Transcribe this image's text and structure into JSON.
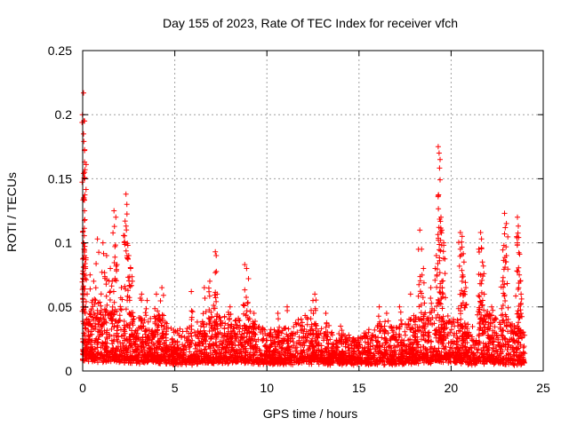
{
  "chart_data": {
    "type": "scatter",
    "title": "Day 155 of 2023, Rate Of TEC Index for receiver vfch",
    "xlabel": "GPS time / hours",
    "ylabel": "ROTI / TECUs",
    "xlim": [
      0,
      25
    ],
    "ylim": [
      0,
      0.25
    ],
    "grid": true,
    "marker": "+",
    "colors": {
      "points": "#ff0000",
      "grid": "#a0a0a0",
      "axes": "#000000"
    },
    "xticks": [
      0,
      5,
      10,
      15,
      20,
      25
    ],
    "xtick_labels": [
      "0",
      "5",
      "10",
      "15",
      "20",
      "25"
    ],
    "yticks": [
      0,
      0.05,
      0.1,
      0.15,
      0.2,
      0.25
    ],
    "ytick_labels": [
      "0",
      "0.05",
      "0.1",
      "0.15",
      "0.2",
      "0.25"
    ],
    "series": [
      {
        "name": "ROTI",
        "description": "dense cloud of points, mostly 0.005-0.04 TECU/s across 0-24 h",
        "envelope": [
          {
            "x": 0.0,
            "base": 0.012,
            "top": 0.05
          },
          {
            "x": 1.0,
            "base": 0.012,
            "top": 0.05
          },
          {
            "x": 2.0,
            "base": 0.01,
            "top": 0.045
          },
          {
            "x": 3.0,
            "base": 0.01,
            "top": 0.04
          },
          {
            "x": 4.0,
            "base": 0.01,
            "top": 0.045
          },
          {
            "x": 5.0,
            "base": 0.008,
            "top": 0.03
          },
          {
            "x": 6.0,
            "base": 0.008,
            "top": 0.032
          },
          {
            "x": 7.0,
            "base": 0.01,
            "top": 0.045
          },
          {
            "x": 8.0,
            "base": 0.01,
            "top": 0.04
          },
          {
            "x": 9.0,
            "base": 0.01,
            "top": 0.04
          },
          {
            "x": 10.0,
            "base": 0.008,
            "top": 0.03
          },
          {
            "x": 11.0,
            "base": 0.008,
            "top": 0.032
          },
          {
            "x": 12.0,
            "base": 0.01,
            "top": 0.04
          },
          {
            "x": 13.0,
            "base": 0.008,
            "top": 0.035
          },
          {
            "x": 14.0,
            "base": 0.008,
            "top": 0.028
          },
          {
            "x": 15.0,
            "base": 0.008,
            "top": 0.025
          },
          {
            "x": 16.0,
            "base": 0.008,
            "top": 0.035
          },
          {
            "x": 17.0,
            "base": 0.008,
            "top": 0.035
          },
          {
            "x": 18.0,
            "base": 0.01,
            "top": 0.04
          },
          {
            "x": 19.0,
            "base": 0.01,
            "top": 0.045
          },
          {
            "x": 20.0,
            "base": 0.01,
            "top": 0.04
          },
          {
            "x": 21.0,
            "base": 0.008,
            "top": 0.035
          },
          {
            "x": 22.0,
            "base": 0.01,
            "top": 0.045
          },
          {
            "x": 23.0,
            "base": 0.008,
            "top": 0.04
          },
          {
            "x": 24.0,
            "base": 0.008,
            "top": 0.03
          }
        ],
        "peaks": [
          {
            "x": 0.05,
            "y": 0.217
          },
          {
            "x": 0.1,
            "y": 0.195
          },
          {
            "x": 0.05,
            "y": 0.185
          },
          {
            "x": 0.1,
            "y": 0.172
          },
          {
            "x": 0.1,
            "y": 0.163
          },
          {
            "x": 0.1,
            "y": 0.15
          },
          {
            "x": 0.05,
            "y": 0.135
          },
          {
            "x": 0.1,
            "y": 0.125
          },
          {
            "x": 0.05,
            "y": 0.1
          },
          {
            "x": 0.1,
            "y": 0.09
          },
          {
            "x": 0.15,
            "y": 0.08
          },
          {
            "x": 0.4,
            "y": 0.075
          },
          {
            "x": 0.6,
            "y": 0.07
          },
          {
            "x": 0.8,
            "y": 0.103
          },
          {
            "x": 1.1,
            "y": 0.1
          },
          {
            "x": 1.3,
            "y": 0.09
          },
          {
            "x": 1.5,
            "y": 0.08
          },
          {
            "x": 1.6,
            "y": 0.07
          },
          {
            "x": 1.7,
            "y": 0.125
          },
          {
            "x": 1.8,
            "y": 0.12
          },
          {
            "x": 1.75,
            "y": 0.097
          },
          {
            "x": 2.1,
            "y": 0.065
          },
          {
            "x": 2.35,
            "y": 0.138
          },
          {
            "x": 2.4,
            "y": 0.13
          },
          {
            "x": 2.3,
            "y": 0.117
          },
          {
            "x": 2.45,
            "y": 0.098
          },
          {
            "x": 2.5,
            "y": 0.09
          },
          {
            "x": 2.6,
            "y": 0.08
          },
          {
            "x": 2.7,
            "y": 0.07
          },
          {
            "x": 3.2,
            "y": 0.06
          },
          {
            "x": 3.5,
            "y": 0.055
          },
          {
            "x": 4.0,
            "y": 0.06
          },
          {
            "x": 4.3,
            "y": 0.065
          },
          {
            "x": 5.9,
            "y": 0.062
          },
          {
            "x": 6.6,
            "y": 0.065
          },
          {
            "x": 6.9,
            "y": 0.07
          },
          {
            "x": 7.2,
            "y": 0.093
          },
          {
            "x": 7.25,
            "y": 0.09
          },
          {
            "x": 7.3,
            "y": 0.06
          },
          {
            "x": 8.0,
            "y": 0.05
          },
          {
            "x": 8.8,
            "y": 0.083
          },
          {
            "x": 8.9,
            "y": 0.08
          },
          {
            "x": 9.0,
            "y": 0.072
          },
          {
            "x": 9.3,
            "y": 0.045
          },
          {
            "x": 10.6,
            "y": 0.045
          },
          {
            "x": 11.1,
            "y": 0.05
          },
          {
            "x": 12.6,
            "y": 0.06
          },
          {
            "x": 12.5,
            "y": 0.055
          },
          {
            "x": 13.2,
            "y": 0.045
          },
          {
            "x": 14.0,
            "y": 0.035
          },
          {
            "x": 16.1,
            "y": 0.05
          },
          {
            "x": 16.5,
            "y": 0.045
          },
          {
            "x": 17.2,
            "y": 0.05
          },
          {
            "x": 17.8,
            "y": 0.06
          },
          {
            "x": 18.3,
            "y": 0.11
          },
          {
            "x": 18.4,
            "y": 0.095
          },
          {
            "x": 18.5,
            "y": 0.08
          },
          {
            "x": 18.9,
            "y": 0.065
          },
          {
            "x": 19.3,
            "y": 0.175
          },
          {
            "x": 19.35,
            "y": 0.17
          },
          {
            "x": 19.4,
            "y": 0.165
          },
          {
            "x": 19.3,
            "y": 0.137
          },
          {
            "x": 19.45,
            "y": 0.12
          },
          {
            "x": 19.5,
            "y": 0.11
          },
          {
            "x": 19.6,
            "y": 0.1
          },
          {
            "x": 19.2,
            "y": 0.09
          },
          {
            "x": 19.5,
            "y": 0.07
          },
          {
            "x": 19.4,
            "y": 0.065
          },
          {
            "x": 20.5,
            "y": 0.108
          },
          {
            "x": 20.6,
            "y": 0.105
          },
          {
            "x": 20.5,
            "y": 0.095
          },
          {
            "x": 20.7,
            "y": 0.085
          },
          {
            "x": 20.6,
            "y": 0.07
          },
          {
            "x": 20.8,
            "y": 0.065
          },
          {
            "x": 21.6,
            "y": 0.108
          },
          {
            "x": 21.65,
            "y": 0.103
          },
          {
            "x": 21.5,
            "y": 0.095
          },
          {
            "x": 21.7,
            "y": 0.085
          },
          {
            "x": 21.6,
            "y": 0.075
          },
          {
            "x": 21.8,
            "y": 0.06
          },
          {
            "x": 22.2,
            "y": 0.05
          },
          {
            "x": 22.9,
            "y": 0.123
          },
          {
            "x": 23.0,
            "y": 0.115
          },
          {
            "x": 22.9,
            "y": 0.107
          },
          {
            "x": 23.0,
            "y": 0.09
          },
          {
            "x": 22.8,
            "y": 0.07
          },
          {
            "x": 23.6,
            "y": 0.12
          },
          {
            "x": 23.65,
            "y": 0.113
          },
          {
            "x": 23.6,
            "y": 0.1
          },
          {
            "x": 23.7,
            "y": 0.075
          },
          {
            "x": 23.75,
            "y": 0.07
          },
          {
            "x": 23.8,
            "y": 0.06
          }
        ]
      }
    ]
  }
}
